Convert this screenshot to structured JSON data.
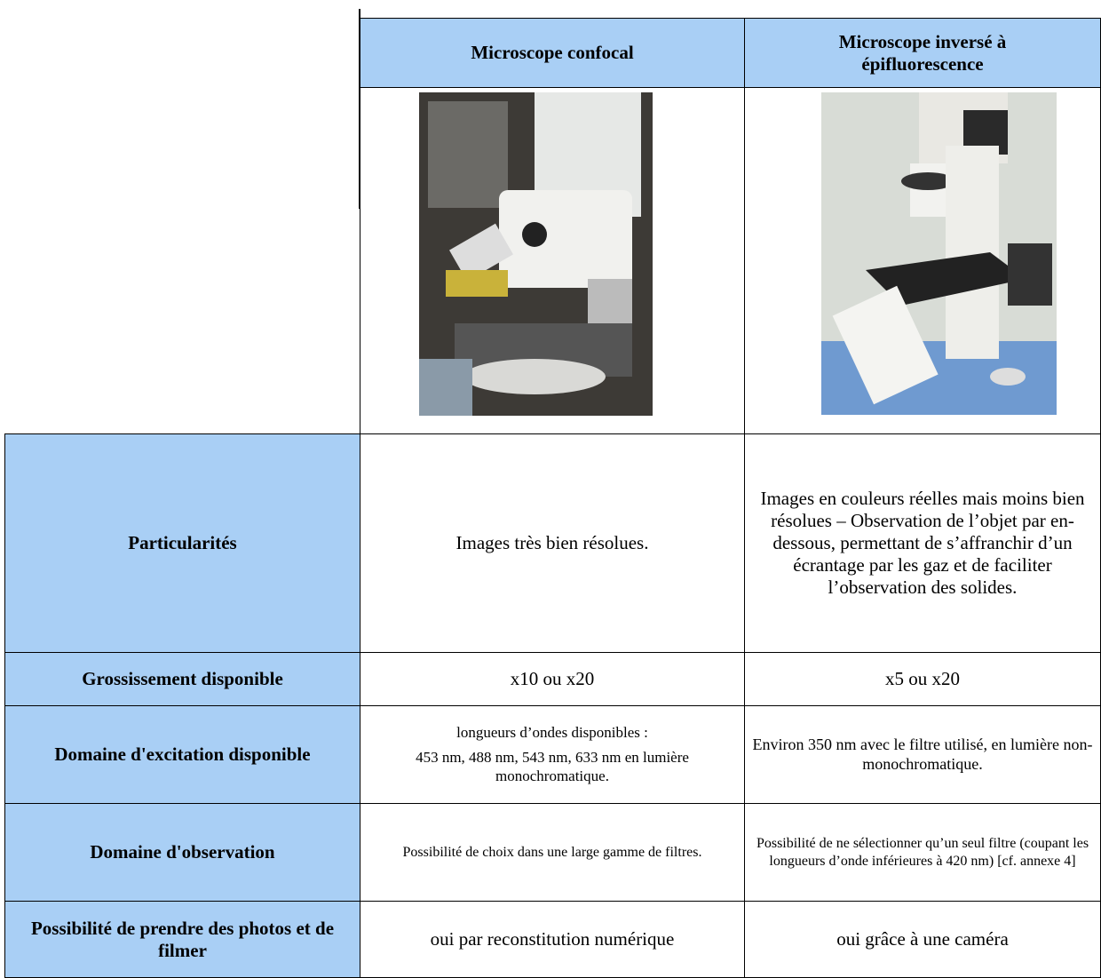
{
  "table": {
    "header": [
      "Microscope confocal",
      "Microscope inversé à épifluorescence"
    ],
    "rows": [
      {
        "label": "Particularités",
        "c1": "Images très bien résolues.",
        "c2": "Images en couleurs réelles mais moins bien résolues – Observation de l’objet par en-dessous, permettant de s’affranchir d’un écrantage par les gaz et de faciliter l’observation des solides."
      },
      {
        "label": "Grossissement disponible",
        "c1": "x10 ou x20",
        "c2": "x5 ou x20"
      },
      {
        "label": "Domaine d'excitation disponible",
        "c1": [
          "longueurs d’ondes disponibles :",
          "453 nm, 488 nm, 543 nm, 633 nm en lumière monochromatique."
        ],
        "c2": "Environ 350 nm avec le filtre utilisé, en lumière non-monochromatique."
      },
      {
        "label": "Domaine d'observation",
        "c1": "Possibilité de choix dans une large gamme de filtres.",
        "c2": "Possibilité de ne sélectionner qu’un seul filtre (coupant les longueurs d’onde inférieures à 420 nm) [cf. annexe 4]"
      },
      {
        "label": "Possibilité de prendre des photos et de filmer",
        "c1": "oui par reconstitution numérique",
        "c2": "oui grâce à une caméra"
      }
    ]
  }
}
